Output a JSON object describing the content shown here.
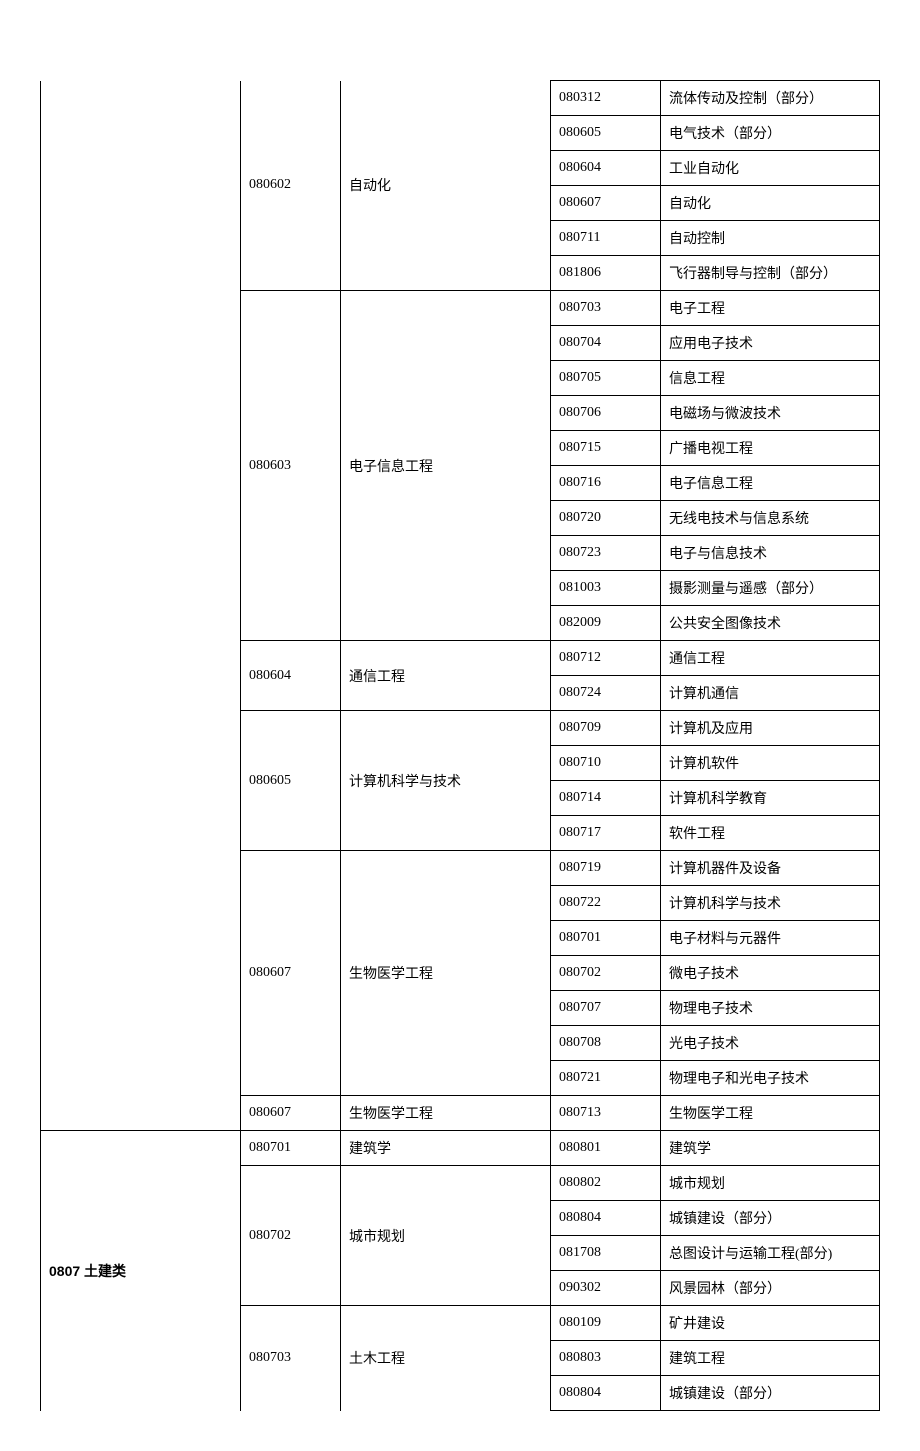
{
  "table": {
    "columns": {
      "col1_width": 200,
      "col2_width": 100,
      "col3_width": 210,
      "col4_width": 110
    },
    "groups": [
      {
        "category": "",
        "category_no_top": true,
        "category_no_bottom": true,
        "majors": [
          {
            "code": "080602",
            "name": "自动化",
            "code_no_top": true,
            "name_no_top": true,
            "subs": [
              {
                "code": "080312",
                "name": "流体传动及控制（部分）"
              },
              {
                "code": "080605",
                "name": "电气技术（部分）"
              },
              {
                "code": "080604",
                "name": "工业自动化"
              },
              {
                "code": "080607",
                "name": "自动化"
              },
              {
                "code": "080711",
                "name": "自动控制"
              },
              {
                "code": "081806",
                "name": "飞行器制导与控制（部分）"
              }
            ]
          },
          {
            "code": "080603",
            "name": "电子信息工程",
            "subs": [
              {
                "code": "080703",
                "name": "电子工程"
              },
              {
                "code": "080704",
                "name": "应用电子技术"
              },
              {
                "code": "080705",
                "name": "信息工程"
              },
              {
                "code": "080706",
                "name": "电磁场与微波技术"
              },
              {
                "code": "080715",
                "name": "广播电视工程"
              },
              {
                "code": "080716",
                "name": "电子信息工程"
              },
              {
                "code": "080720",
                "name": "无线电技术与信息系统"
              },
              {
                "code": "080723",
                "name": "电子与信息技术"
              },
              {
                "code": "081003",
                "name": "摄影测量与遥感（部分）"
              },
              {
                "code": "082009",
                "name": "公共安全图像技术"
              }
            ]
          },
          {
            "code": "080604",
            "name": "通信工程",
            "subs": [
              {
                "code": "080712",
                "name": "通信工程"
              },
              {
                "code": "080724",
                "name": "计算机通信"
              }
            ]
          },
          {
            "code": "080605",
            "name": "计算机科学与技术",
            "subs": [
              {
                "code": "080709",
                "name": "计算机及应用"
              },
              {
                "code": "080710",
                "name": "计算机软件"
              },
              {
                "code": "080714",
                "name": "计算机科学教育"
              },
              {
                "code": "080717",
                "name": "软件工程"
              }
            ]
          },
          {
            "code": "080607",
            "name": "生物医学工程",
            "subs": [
              {
                "code": "080719",
                "name": "计算机器件及设备"
              },
              {
                "code": "080722",
                "name": "计算机科学与技术"
              },
              {
                "code": "080701",
                "name": "电子材料与元器件"
              },
              {
                "code": "080702",
                "name": "微电子技术"
              },
              {
                "code": "080707",
                "name": "物理电子技术"
              },
              {
                "code": "080708",
                "name": "光电子技术"
              },
              {
                "code": "080721",
                "name": "物理电子和光电子技术"
              }
            ]
          },
          {
            "code": "080607",
            "name": "生物医学工程",
            "subs": [
              {
                "code": "080713",
                "name": "生物医学工程"
              }
            ]
          }
        ]
      },
      {
        "category": "0807 土建类",
        "category_no_bottom": true,
        "majors": [
          {
            "code": "080701",
            "name": "建筑学",
            "subs": [
              {
                "code": "080801",
                "name": "建筑学"
              }
            ]
          },
          {
            "code": "080702",
            "name": "城市规划",
            "subs": [
              {
                "code": "080802",
                "name": "城市规划"
              },
              {
                "code": "080804",
                "name": "城镇建设（部分）"
              },
              {
                "code": "081708",
                "name": "总图设计与运输工程(部分)"
              },
              {
                "code": "090302",
                "name": "风景园林（部分）"
              }
            ]
          },
          {
            "code": "080703",
            "name": "土木工程",
            "code_no_bottom": true,
            "name_no_bottom": true,
            "subs": [
              {
                "code": "080109",
                "name": "矿井建设"
              },
              {
                "code": "080803",
                "name": "建筑工程"
              },
              {
                "code": "080804",
                "name": "城镇建设（部分）"
              }
            ]
          }
        ]
      }
    ]
  }
}
